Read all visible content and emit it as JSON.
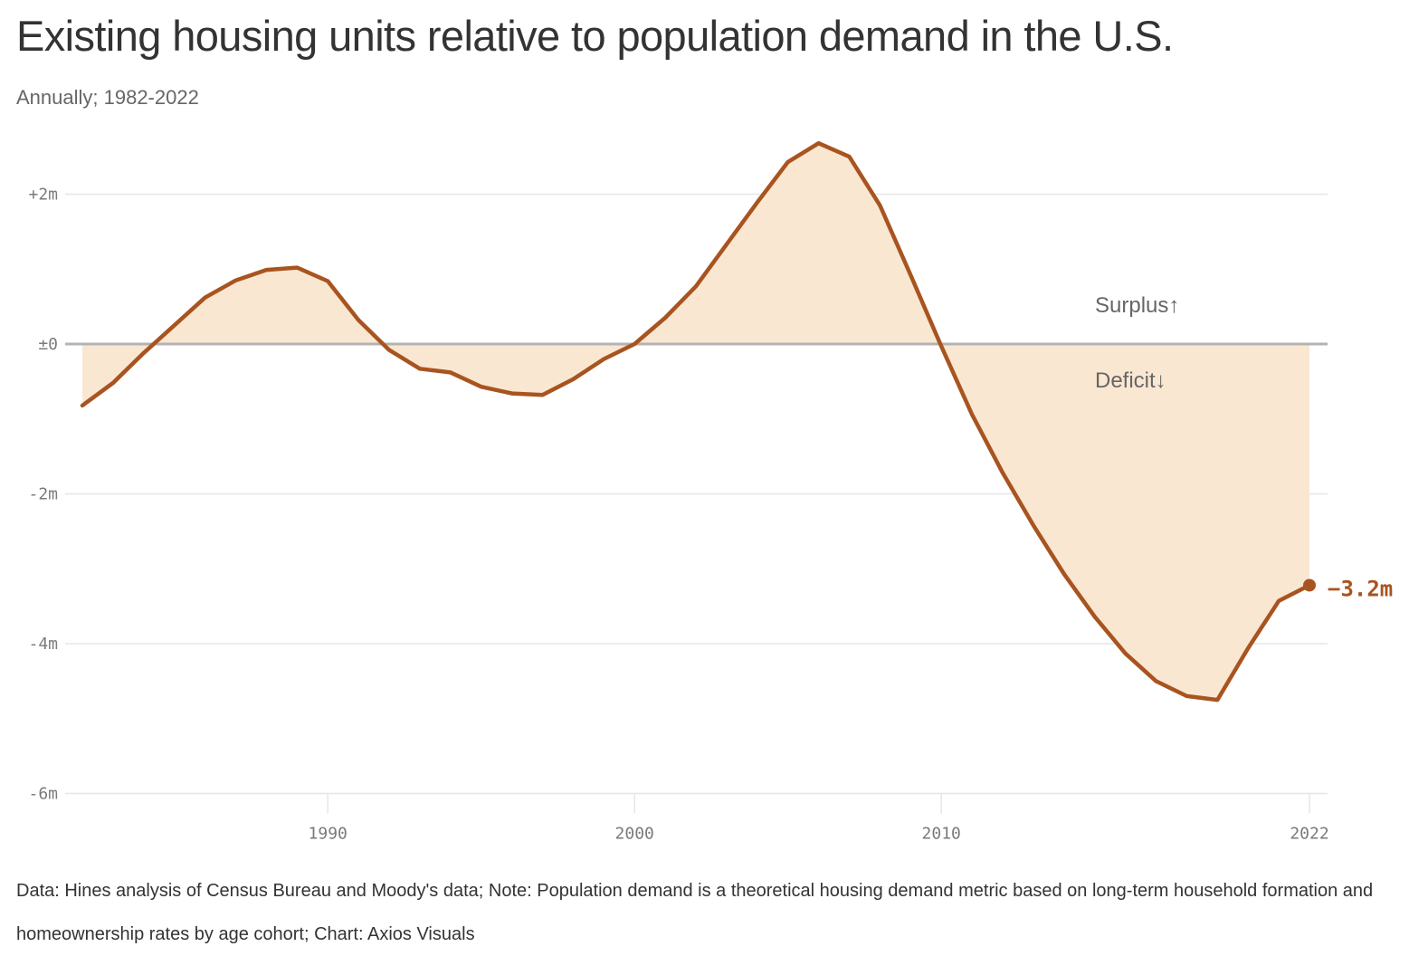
{
  "header": {
    "title": "Existing housing units relative to population demand in the U.S.",
    "subtitle": "Annually; 1982-2022"
  },
  "footer": {
    "note": "Data: Hines analysis of Census Bureau and Moody's data; Note: Population demand is a theoretical housing demand metric based on long-term household formation and homeownership rates by age cohort; Chart: Axios Visuals"
  },
  "colors": {
    "line": "#a85420",
    "fill": "#fae7d2",
    "zero_line": "#b3b3b3",
    "grid": "#e6e6e6"
  },
  "chart_data": {
    "type": "area",
    "title": "Existing housing units relative to population demand in the U.S.",
    "subtitle": "Annually; 1982-2022",
    "xlabel": "",
    "ylabel": "",
    "xlim": [
      1982,
      2022
    ],
    "ylim": [
      -6,
      2.5
    ],
    "x_ticks": [
      {
        "value": 1990,
        "label": "1990"
      },
      {
        "value": 2000,
        "label": "2000"
      },
      {
        "value": 2010,
        "label": "2010"
      },
      {
        "value": 2022,
        "label": "2022"
      }
    ],
    "y_ticks": [
      {
        "value": 2,
        "label": "+2m"
      },
      {
        "value": 0,
        "label": "±0"
      },
      {
        "value": -2,
        "label": "-2m"
      },
      {
        "value": -4,
        "label": "-4m"
      },
      {
        "value": -6,
        "label": "-6m"
      }
    ],
    "grid": true,
    "annotations": {
      "surplus": "Surplus↑",
      "deficit": "Deficit↓",
      "end_label": "−3.2m"
    },
    "x": [
      1982,
      1983,
      1984,
      1985,
      1986,
      1987,
      1988,
      1989,
      1990,
      1991,
      1992,
      1993,
      1994,
      1995,
      1996,
      1997,
      1998,
      1999,
      2000,
      2001,
      2002,
      2003,
      2004,
      2005,
      2006,
      2007,
      2008,
      2009,
      2010,
      2011,
      2012,
      2013,
      2014,
      2015,
      2016,
      2017,
      2018,
      2019,
      2020,
      2021,
      2022
    ],
    "values": [
      -0.82,
      -0.52,
      -0.12,
      0.25,
      0.62,
      0.85,
      0.99,
      1.02,
      0.84,
      0.32,
      -0.08,
      -0.33,
      -0.38,
      -0.57,
      -0.66,
      -0.68,
      -0.47,
      -0.2,
      0.0,
      0.35,
      0.77,
      1.33,
      1.89,
      2.43,
      2.68,
      2.5,
      1.85,
      0.92,
      -0.03,
      -0.94,
      -1.72,
      -2.42,
      -3.07,
      -3.64,
      -4.13,
      -4.5,
      -4.7,
      -4.75,
      -4.06,
      -3.43,
      -3.22
    ]
  }
}
